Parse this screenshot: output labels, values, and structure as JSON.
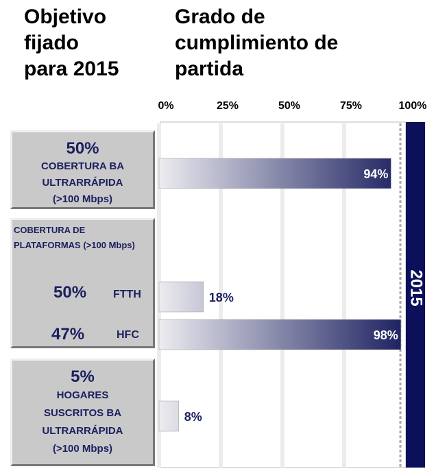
{
  "headers": {
    "target": [
      "Objetivo",
      "fijado",
      "para 2015"
    ],
    "progress": [
      "Grado de",
      "cumplimiento de",
      "partida"
    ]
  },
  "chart_data": {
    "type": "bar",
    "orientation": "horizontal",
    "categories": [
      "COBERTURA BA ULTRARRÁPIDA (>100 Mbps)",
      "FTTH",
      "HFC",
      "HOGARES SUSCRITOS BA ULTRARRÁPIDA (>100 Mbps)"
    ],
    "targets": [
      "50%",
      "50%",
      "47%",
      "5%"
    ],
    "group_label": "COBERTURA DE PLATAFORMAS (>100 Mbps)",
    "values": [
      94,
      18,
      98,
      8
    ],
    "value_labels": [
      "94%",
      "18%",
      "98%",
      "8%"
    ],
    "color": "#1b1f5f",
    "xlim": [
      0,
      100
    ],
    "xticks": [
      {
        "value": 0,
        "label": "0%"
      },
      {
        "value": 25,
        "label": "25%"
      },
      {
        "value": 50,
        "label": "50%"
      },
      {
        "value": 75,
        "label": "75%"
      },
      {
        "value": 100,
        "label": "100%"
      }
    ],
    "grid": true,
    "band_label": "2015"
  }
}
